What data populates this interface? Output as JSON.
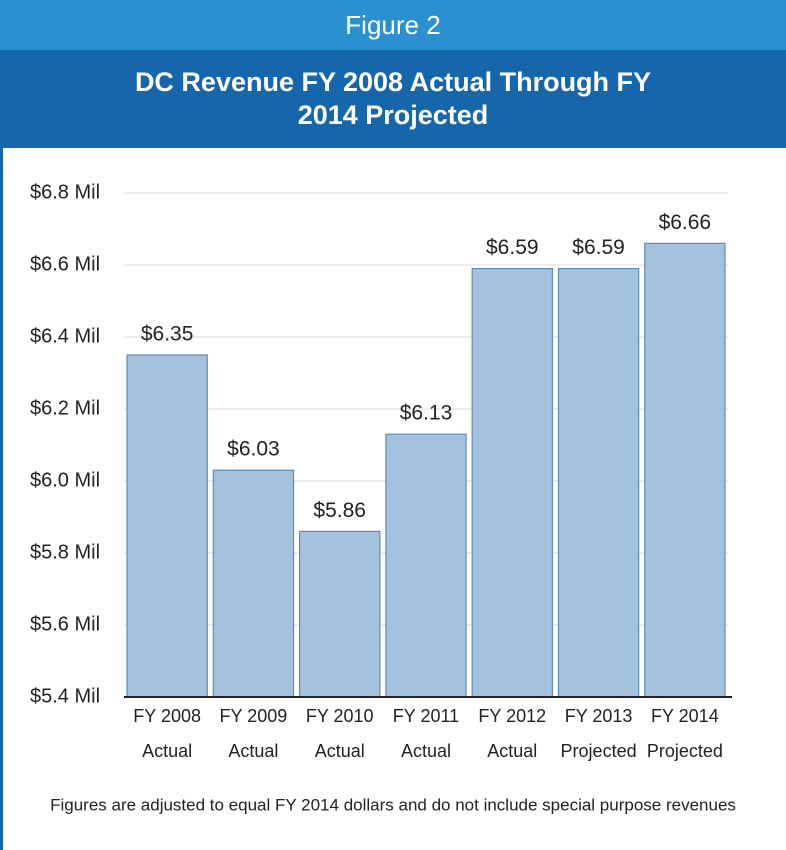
{
  "chart_data": {
    "type": "bar",
    "figure_label": "Figure 2",
    "title": "DC Revenue FY 2008 Actual Through FY 2014 Projected",
    "footnote": "Figures are adjusted to equal FY 2014 dollars and do not include special purpose revenues",
    "categories": [
      "FY 2008 Actual",
      "FY 2009 Actual",
      "FY 2010 Actual",
      "FY 2011 Actual",
      "FY 2012 Actual",
      "FY 2013 Projected",
      "FY 2014 Projected"
    ],
    "values": [
      6.35,
      6.03,
      5.86,
      6.13,
      6.59,
      6.59,
      6.66
    ],
    "value_labels": [
      "$6.35",
      "$6.03",
      "$5.86",
      "$6.13",
      "$6.59",
      "$6.59",
      "$6.66"
    ],
    "color": "#a4c2de",
    "ylim": [
      5.4,
      6.8
    ],
    "yticks": [
      {
        "value": 5.4,
        "label": "$5.4 Mil"
      },
      {
        "value": 5.6,
        "label": "$5.6 Mil"
      },
      {
        "value": 5.8,
        "label": "$5.8 Mil"
      },
      {
        "value": 6.0,
        "label": "$6.0 Mil"
      },
      {
        "value": 6.2,
        "label": "$6.2 Mil"
      },
      {
        "value": 6.4,
        "label": "$6.4 Mil"
      },
      {
        "value": 6.6,
        "label": "$6.6 Mil"
      },
      {
        "value": 6.8,
        "label": "$6.8 Mil"
      }
    ],
    "grid": true
  }
}
